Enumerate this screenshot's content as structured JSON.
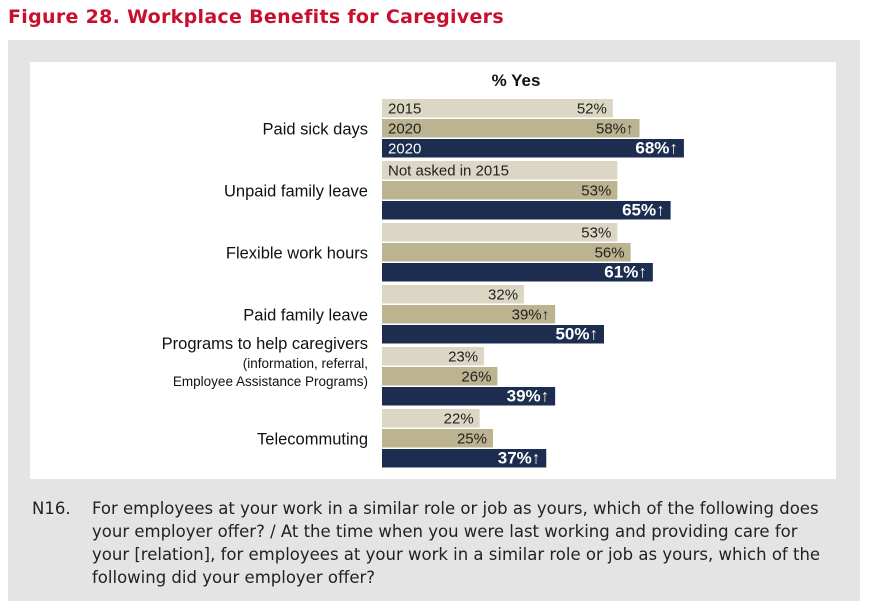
{
  "figure_title": "Figure 28. Workplace Benefits for Caregivers",
  "colors": {
    "title": "#c8102e",
    "y2015": "#dcd7c4",
    "y2020a": "#bcb391",
    "y2020b": "#1c2d4f",
    "panel": "#e4e4e4"
  },
  "note": {
    "id": "N16.",
    "text": "For employees at your work in a similar role or job as yours, which of the following does your employer offer? / At the time when you were last working and providing care for your [relation], for employees at your work in a similar role or job as yours, which of the following did your employer offer?"
  },
  "chart_data": {
    "type": "bar",
    "orientation": "horizontal",
    "title": "% Yes",
    "categories": [
      "Paid sick days",
      "Unpaid family leave",
      "Flexible work hours",
      "Paid family leave",
      "Programs to help caregivers",
      "Telecommuting"
    ],
    "category_sublabels": [
      [],
      [],
      [],
      [],
      [
        "(information, referral,",
        "Employee Assistance Programs)"
      ],
      []
    ],
    "series": [
      {
        "name": "2015",
        "values": [
          52,
          null,
          53,
          32,
          23,
          22
        ],
        "labels": [
          "52%",
          "Not asked in 2015",
          "53%",
          "32%",
          "23%",
          "22%"
        ]
      },
      {
        "name": "2020",
        "values": [
          58,
          53,
          56,
          39,
          26,
          25
        ],
        "labels": [
          "58%↑",
          "53%",
          "56%",
          "39%↑",
          "26%",
          "25%"
        ]
      },
      {
        "name": "2020",
        "values": [
          68,
          65,
          61,
          50,
          39,
          37
        ],
        "labels": [
          "68%↑",
          "65%↑",
          "61%↑",
          "50%↑",
          "39%↑",
          "37%↑"
        ]
      }
    ],
    "legend": [
      "2015",
      "2020",
      "2020"
    ],
    "xlim": [
      0,
      100
    ],
    "grid": false
  }
}
